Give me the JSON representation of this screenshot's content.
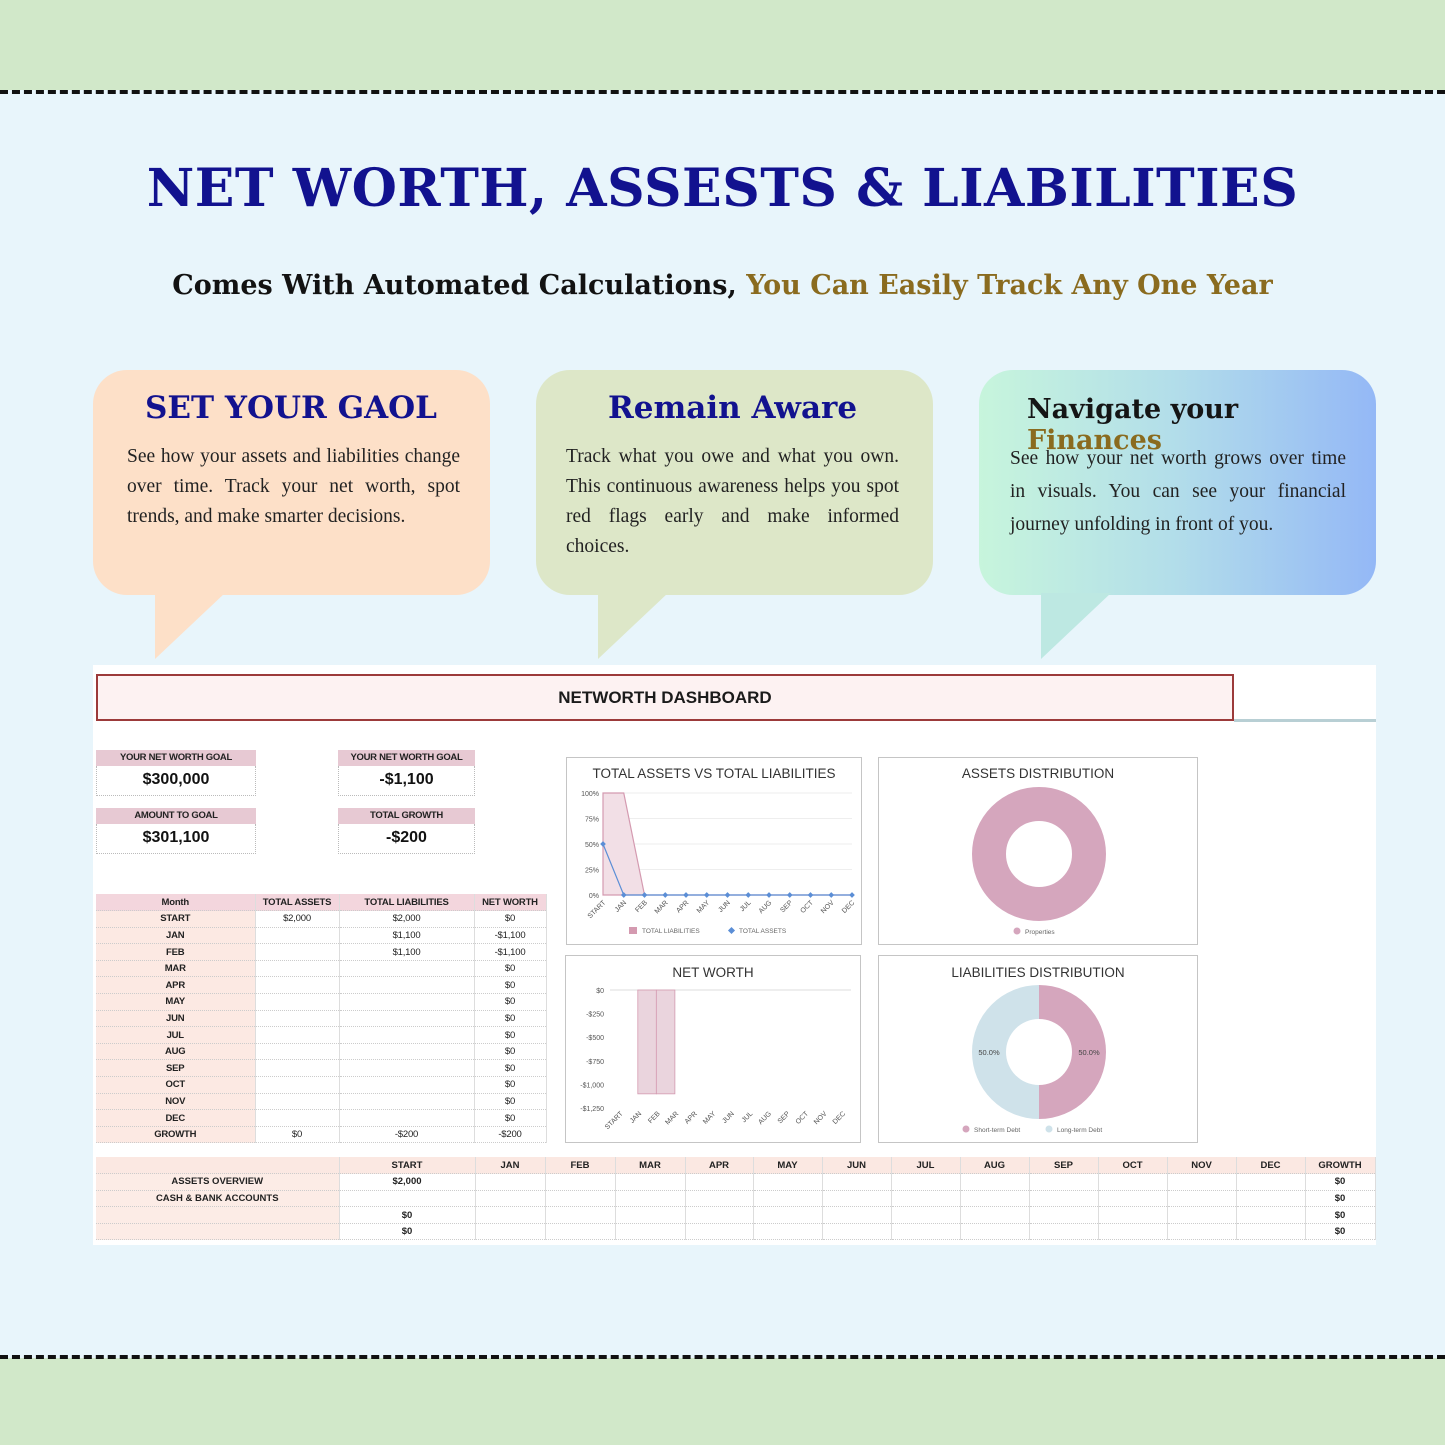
{
  "header": {
    "title": "NET WORTH, ASSESTS & LIABILITIES",
    "subtitle_part1": "Comes With Automated Calculations,",
    "subtitle_part2": "You Can Easily Track Any One Year"
  },
  "bubbles": [
    {
      "title": "SET YOUR GAOL",
      "text": "See how your assets and liabilities change over time. Track your net worth, spot trends, and make smarter decisions."
    },
    {
      "title": "Remain Aware",
      "text": "Track what you owe and what you own. This continuous awareness helps you spot red flags early and make informed choices."
    },
    {
      "title_part1": "Navigate",
      "title_part2": "your",
      "title_part3": "Finances",
      "text": "See how your net worth grows over time in visuals. You can see your financial journey unfolding in front of you."
    }
  ],
  "dashboard": {
    "title": "NETWORTH DASHBOARD",
    "kpis": [
      {
        "label": "YOUR NET WORTH GOAL",
        "value": "$300,000"
      },
      {
        "label": "YOUR NET WORTH GOAL",
        "value": "-$1,100"
      },
      {
        "label": "AMOUNT TO GOAL",
        "value": "$301,100"
      },
      {
        "label": "TOTAL GROWTH",
        "value": "-$200"
      }
    ],
    "monthly_table": {
      "headers": [
        "Month",
        "TOTAL ASSETS",
        "TOTAL LIABILITIES",
        "NET WORTH"
      ],
      "rows": [
        [
          "START",
          "$2,000",
          "$2,000",
          "$0"
        ],
        [
          "JAN",
          "",
          "$1,100",
          "-$1,100"
        ],
        [
          "FEB",
          "",
          "$1,100",
          "-$1,100"
        ],
        [
          "MAR",
          "",
          "",
          "$0"
        ],
        [
          "APR",
          "",
          "",
          "$0"
        ],
        [
          "MAY",
          "",
          "",
          "$0"
        ],
        [
          "JUN",
          "",
          "",
          "$0"
        ],
        [
          "JUL",
          "",
          "",
          "$0"
        ],
        [
          "AUG",
          "",
          "",
          "$0"
        ],
        [
          "SEP",
          "",
          "",
          "$0"
        ],
        [
          "OCT",
          "",
          "",
          "$0"
        ],
        [
          "NOV",
          "",
          "",
          "$0"
        ],
        [
          "DEC",
          "",
          "",
          "$0"
        ],
        [
          "GROWTH",
          "$0",
          "-$200",
          "-$200"
        ]
      ]
    },
    "overview_table": {
      "headers": [
        "",
        "START",
        "JAN",
        "FEB",
        "MAR",
        "APR",
        "MAY",
        "JUN",
        "JUL",
        "AUG",
        "SEP",
        "OCT",
        "NOV",
        "DEC",
        "GROWTH"
      ],
      "rows": [
        [
          "ASSETS OVERVIEW",
          "$2,000",
          "",
          "",
          "",
          "",
          "",
          "",
          "",
          "",
          "",
          "",
          "",
          "",
          "$0"
        ],
        [
          "CASH & BANK ACCOUNTS",
          "",
          "",
          "",
          "",
          "",
          "",
          "",
          "",
          "",
          "",
          "",
          "",
          "",
          "$0"
        ],
        [
          "",
          "$0",
          "",
          "",
          "",
          "",
          "",
          "",
          "",
          "",
          "",
          "",
          "",
          "",
          "$0"
        ],
        [
          "",
          "$0",
          "",
          "",
          "",
          "",
          "",
          "",
          "",
          "",
          "",
          "",
          "",
          "",
          "$0"
        ]
      ]
    }
  },
  "chart_data": [
    {
      "type": "area",
      "title": "TOTAL ASSETS VS TOTAL LIABILITIES",
      "categories": [
        "START",
        "JAN",
        "FEB",
        "MAR",
        "APR",
        "MAY",
        "JUN",
        "JUL",
        "AUG",
        "SEP",
        "OCT",
        "NOV",
        "DEC"
      ],
      "y_ticks": [
        "100%",
        "75%",
        "50%",
        "25%",
        "0%"
      ],
      "ylim": [
        0,
        1
      ],
      "series": [
        {
          "name": "TOTAL LIABILITIES",
          "style": "area",
          "color": "#d49ab0",
          "values": [
            1,
            1,
            0,
            0,
            0,
            0,
            0,
            0,
            0,
            0,
            0,
            0,
            0
          ]
        },
        {
          "name": "TOTAL ASSETS",
          "style": "line",
          "color": "#5b8ed6",
          "values": [
            0.5,
            0,
            0,
            0,
            0,
            0,
            0,
            0,
            0,
            0,
            0,
            0,
            0
          ]
        }
      ],
      "legend": "bottom"
    },
    {
      "type": "pie",
      "title": "ASSETS DISTRIBUTION",
      "donut": true,
      "slices": [
        {
          "name": "Properties",
          "value": 100,
          "color": "#d5a6bd"
        }
      ],
      "legend": "bottom"
    },
    {
      "type": "bar",
      "title": "NET WORTH",
      "categories": [
        "START",
        "JAN",
        "FEB",
        "MAR",
        "APR",
        "MAY",
        "JUN",
        "JUL",
        "AUG",
        "SEP",
        "OCT",
        "NOV",
        "DEC"
      ],
      "values": [
        0,
        -1100,
        -1100,
        0,
        0,
        0,
        0,
        0,
        0,
        0,
        0,
        0,
        0
      ],
      "y_ticks": [
        "$0",
        "-$250",
        "-$500",
        "-$750",
        "-$1,000",
        "-$1,250"
      ],
      "ylim": [
        -1250,
        0
      ],
      "color": "#ead4dd"
    },
    {
      "type": "pie",
      "title": "LIABILITIES DISTRIBUTION",
      "donut": true,
      "slices": [
        {
          "name": "Short-term Debt",
          "value": 50,
          "label": "50.0%",
          "color": "#d5a6bd"
        },
        {
          "name": "Long-term Debt",
          "value": 50,
          "label": "50.0%",
          "color": "#cfe2ea"
        }
      ],
      "legend": "bottom"
    }
  ]
}
